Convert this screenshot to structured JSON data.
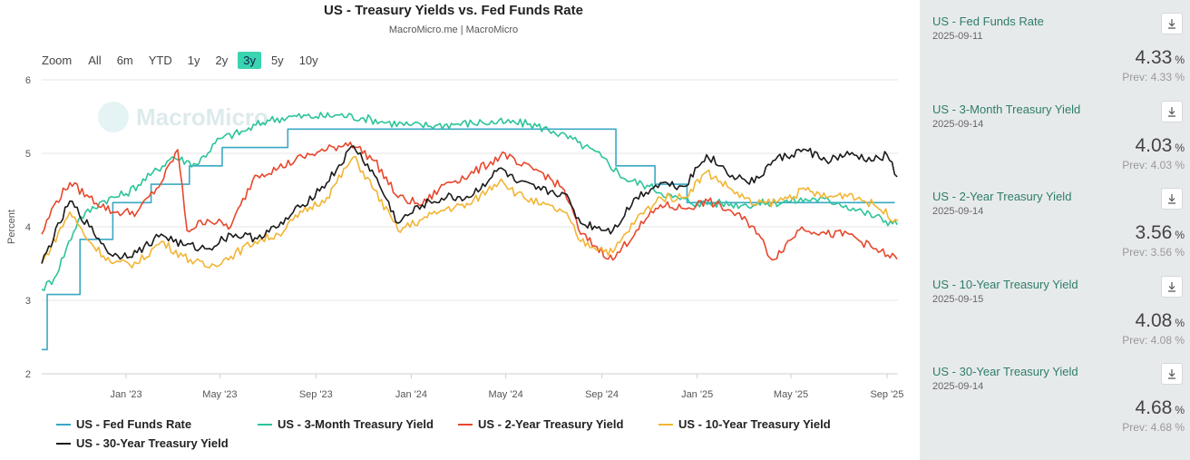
{
  "header": {
    "title": "US - Treasury Yields vs. Fed Funds Rate",
    "subtitle": "MacroMicro.me | MacroMicro"
  },
  "zoom": {
    "label": "Zoom",
    "options": [
      "All",
      "6m",
      "YTD",
      "1y",
      "2y",
      "3y",
      "5y",
      "10y"
    ],
    "active": "3y"
  },
  "watermark": "MacroMicro",
  "chart_data": {
    "type": "line",
    "title": "US - Treasury Yields vs. Fed Funds Rate",
    "subtitle": "MacroMicro.me | MacroMicro",
    "ylabel": "Percent",
    "ylim": [
      2,
      6
    ],
    "yticks": [
      2,
      3,
      4,
      5,
      6
    ],
    "xlim": [
      "2022-09-15",
      "2025-09-15"
    ],
    "xticks": [
      {
        "date": "2023-01-01",
        "label": "Jan '23"
      },
      {
        "date": "2023-05-01",
        "label": "May '23"
      },
      {
        "date": "2023-09-01",
        "label": "Sep '23"
      },
      {
        "date": "2024-01-01",
        "label": "Jan '24"
      },
      {
        "date": "2024-05-01",
        "label": "May '24"
      },
      {
        "date": "2024-09-01",
        "label": "Sep '24"
      },
      {
        "date": "2025-01-01",
        "label": "Jan '25"
      },
      {
        "date": "2025-05-01",
        "label": "May '25"
      },
      {
        "date": "2025-09-01",
        "label": "Sep '25"
      }
    ],
    "grid": true,
    "legend_position": "bottom",
    "series": [
      {
        "name": "US - Fed Funds Rate",
        "color": "#3aa8c4",
        "step": true,
        "points": [
          [
            "2022-09-15",
            2.33
          ],
          [
            "2022-09-22",
            3.08
          ],
          [
            "2022-11-03",
            3.83
          ],
          [
            "2022-12-15",
            4.33
          ],
          [
            "2023-02-02",
            4.58
          ],
          [
            "2023-03-23",
            4.83
          ],
          [
            "2023-05-04",
            5.08
          ],
          [
            "2023-07-27",
            5.33
          ],
          [
            "2024-09-19",
            4.83
          ],
          [
            "2024-11-08",
            4.58
          ],
          [
            "2024-12-19",
            4.33
          ],
          [
            "2025-09-11",
            4.33
          ]
        ]
      },
      {
        "name": "US - 3-Month Treasury Yield",
        "color": "#2bc49a",
        "points": [
          [
            "2022-09-15",
            3.15
          ],
          [
            "2022-10-01",
            3.3
          ],
          [
            "2022-11-01",
            4.1
          ],
          [
            "2022-12-01",
            4.35
          ],
          [
            "2023-01-01",
            4.45
          ],
          [
            "2023-02-01",
            4.7
          ],
          [
            "2023-03-01",
            4.95
          ],
          [
            "2023-04-01",
            4.85
          ],
          [
            "2023-05-01",
            5.2
          ],
          [
            "2023-06-01",
            5.3
          ],
          [
            "2023-07-01",
            5.45
          ],
          [
            "2023-08-01",
            5.5
          ],
          [
            "2023-09-01",
            5.5
          ],
          [
            "2023-10-01",
            5.52
          ],
          [
            "2023-11-01",
            5.48
          ],
          [
            "2023-12-01",
            5.42
          ],
          [
            "2024-01-01",
            5.38
          ],
          [
            "2024-02-01",
            5.38
          ],
          [
            "2024-03-01",
            5.4
          ],
          [
            "2024-04-01",
            5.42
          ],
          [
            "2024-05-01",
            5.42
          ],
          [
            "2024-06-01",
            5.4
          ],
          [
            "2024-07-01",
            5.3
          ],
          [
            "2024-08-01",
            5.15
          ],
          [
            "2024-09-01",
            4.95
          ],
          [
            "2024-10-01",
            4.65
          ],
          [
            "2024-11-01",
            4.55
          ],
          [
            "2024-12-01",
            4.4
          ],
          [
            "2025-01-01",
            4.32
          ],
          [
            "2025-02-01",
            4.32
          ],
          [
            "2025-03-01",
            4.3
          ],
          [
            "2025-04-01",
            4.32
          ],
          [
            "2025-05-01",
            4.35
          ],
          [
            "2025-06-01",
            4.38
          ],
          [
            "2025-07-01",
            4.33
          ],
          [
            "2025-08-01",
            4.2
          ],
          [
            "2025-09-14",
            4.03
          ]
        ]
      },
      {
        "name": "US - 2-Year Treasury Yield",
        "color": "#e8472c",
        "points": [
          [
            "2022-09-15",
            3.9
          ],
          [
            "2022-10-01",
            4.3
          ],
          [
            "2022-10-21",
            4.6
          ],
          [
            "2022-11-15",
            4.4
          ],
          [
            "2022-12-15",
            4.2
          ],
          [
            "2023-01-15",
            4.2
          ],
          [
            "2023-02-15",
            4.6
          ],
          [
            "2023-03-08",
            5.05
          ],
          [
            "2023-03-20",
            3.95
          ],
          [
            "2023-04-15",
            4.1
          ],
          [
            "2023-05-15",
            4.0
          ],
          [
            "2023-06-15",
            4.7
          ],
          [
            "2023-07-15",
            4.8
          ],
          [
            "2023-08-15",
            4.95
          ],
          [
            "2023-09-15",
            5.05
          ],
          [
            "2023-10-15",
            5.15
          ],
          [
            "2023-11-15",
            4.9
          ],
          [
            "2023-12-15",
            4.4
          ],
          [
            "2024-01-15",
            4.3
          ],
          [
            "2024-02-15",
            4.6
          ],
          [
            "2024-03-15",
            4.7
          ],
          [
            "2024-04-30",
            5.0
          ],
          [
            "2024-05-15",
            4.85
          ],
          [
            "2024-06-15",
            4.75
          ],
          [
            "2024-07-15",
            4.5
          ],
          [
            "2024-08-05",
            3.9
          ],
          [
            "2024-09-15",
            3.55
          ],
          [
            "2024-10-15",
            3.95
          ],
          [
            "2024-11-15",
            4.3
          ],
          [
            "2024-12-15",
            4.25
          ],
          [
            "2025-01-15",
            4.35
          ],
          [
            "2025-02-15",
            4.2
          ],
          [
            "2025-03-15",
            4.0
          ],
          [
            "2025-04-07",
            3.55
          ],
          [
            "2025-05-15",
            4.0
          ],
          [
            "2025-06-15",
            3.9
          ],
          [
            "2025-07-15",
            3.9
          ],
          [
            "2025-08-15",
            3.7
          ],
          [
            "2025-09-14",
            3.56
          ]
        ]
      },
      {
        "name": "US - 10-Year Treasury Yield",
        "color": "#f2b534",
        "points": [
          [
            "2022-09-15",
            3.5
          ],
          [
            "2022-10-21",
            4.2
          ],
          [
            "2022-11-15",
            3.8
          ],
          [
            "2022-12-15",
            3.5
          ],
          [
            "2023-01-15",
            3.5
          ],
          [
            "2023-02-15",
            3.8
          ],
          [
            "2023-03-15",
            3.6
          ],
          [
            "2023-04-15",
            3.45
          ],
          [
            "2023-05-15",
            3.6
          ],
          [
            "2023-06-15",
            3.8
          ],
          [
            "2023-07-15",
            3.9
          ],
          [
            "2023-08-15",
            4.2
          ],
          [
            "2023-09-15",
            4.4
          ],
          [
            "2023-10-19",
            4.95
          ],
          [
            "2023-11-15",
            4.5
          ],
          [
            "2023-12-15",
            3.95
          ],
          [
            "2024-01-15",
            4.1
          ],
          [
            "2024-02-15",
            4.25
          ],
          [
            "2024-03-15",
            4.3
          ],
          [
            "2024-04-25",
            4.65
          ],
          [
            "2024-05-15",
            4.45
          ],
          [
            "2024-06-15",
            4.3
          ],
          [
            "2024-07-15",
            4.2
          ],
          [
            "2024-08-05",
            3.8
          ],
          [
            "2024-09-15",
            3.65
          ],
          [
            "2024-10-15",
            4.1
          ],
          [
            "2024-11-15",
            4.4
          ],
          [
            "2024-12-15",
            4.4
          ],
          [
            "2025-01-13",
            4.75
          ],
          [
            "2025-02-15",
            4.5
          ],
          [
            "2025-03-15",
            4.3
          ],
          [
            "2025-04-15",
            4.35
          ],
          [
            "2025-05-20",
            4.5
          ],
          [
            "2025-06-15",
            4.4
          ],
          [
            "2025-07-15",
            4.45
          ],
          [
            "2025-08-15",
            4.3
          ],
          [
            "2025-09-15",
            4.08
          ]
        ]
      },
      {
        "name": "US - 30-Year Treasury Yield",
        "color": "#1a1a1a",
        "points": [
          [
            "2022-09-15",
            3.5
          ],
          [
            "2022-10-21",
            4.35
          ],
          [
            "2022-11-15",
            4.0
          ],
          [
            "2022-12-15",
            3.6
          ],
          [
            "2023-01-15",
            3.65
          ],
          [
            "2023-02-15",
            3.9
          ],
          [
            "2023-03-15",
            3.75
          ],
          [
            "2023-04-15",
            3.7
          ],
          [
            "2023-05-15",
            3.9
          ],
          [
            "2023-06-15",
            3.85
          ],
          [
            "2023-07-15",
            4.0
          ],
          [
            "2023-08-15",
            4.3
          ],
          [
            "2023-09-15",
            4.6
          ],
          [
            "2023-10-19",
            5.1
          ],
          [
            "2023-11-15",
            4.7
          ],
          [
            "2023-12-15",
            4.05
          ],
          [
            "2024-01-15",
            4.3
          ],
          [
            "2024-02-15",
            4.4
          ],
          [
            "2024-03-15",
            4.4
          ],
          [
            "2024-04-25",
            4.8
          ],
          [
            "2024-05-15",
            4.6
          ],
          [
            "2024-06-15",
            4.5
          ],
          [
            "2024-07-15",
            4.45
          ],
          [
            "2024-08-05",
            4.05
          ],
          [
            "2024-09-15",
            3.95
          ],
          [
            "2024-10-15",
            4.4
          ],
          [
            "2024-11-15",
            4.6
          ],
          [
            "2024-12-15",
            4.55
          ],
          [
            "2025-01-13",
            4.98
          ],
          [
            "2025-02-15",
            4.7
          ],
          [
            "2025-03-15",
            4.6
          ],
          [
            "2025-04-08",
            4.9
          ],
          [
            "2025-05-20",
            5.05
          ],
          [
            "2025-06-15",
            4.9
          ],
          [
            "2025-07-15",
            4.98
          ],
          [
            "2025-08-15",
            4.9
          ],
          [
            "2025-09-01",
            4.98
          ],
          [
            "2025-09-14",
            4.68
          ]
        ]
      }
    ]
  },
  "panel": {
    "cards": [
      {
        "name": "US - Fed Funds Rate",
        "date": "2025-09-11",
        "value": "4.33",
        "unit": "%",
        "prev": "Prev: 4.33 %"
      },
      {
        "name": "US - 3-Month Treasury Yield",
        "date": "2025-09-14",
        "value": "4.03",
        "unit": "%",
        "prev": "Prev: 4.03 %"
      },
      {
        "name": "US - 2-Year Treasury Yield",
        "date": "2025-09-14",
        "value": "3.56",
        "unit": "%",
        "prev": "Prev: 3.56 %"
      },
      {
        "name": "US - 10-Year Treasury Yield",
        "date": "2025-09-15",
        "value": "4.08",
        "unit": "%",
        "prev": "Prev: 4.08 %"
      },
      {
        "name": "US - 30-Year Treasury Yield",
        "date": "2025-09-14",
        "value": "4.68",
        "unit": "%",
        "prev": "Prev: 4.68 %"
      }
    ]
  }
}
